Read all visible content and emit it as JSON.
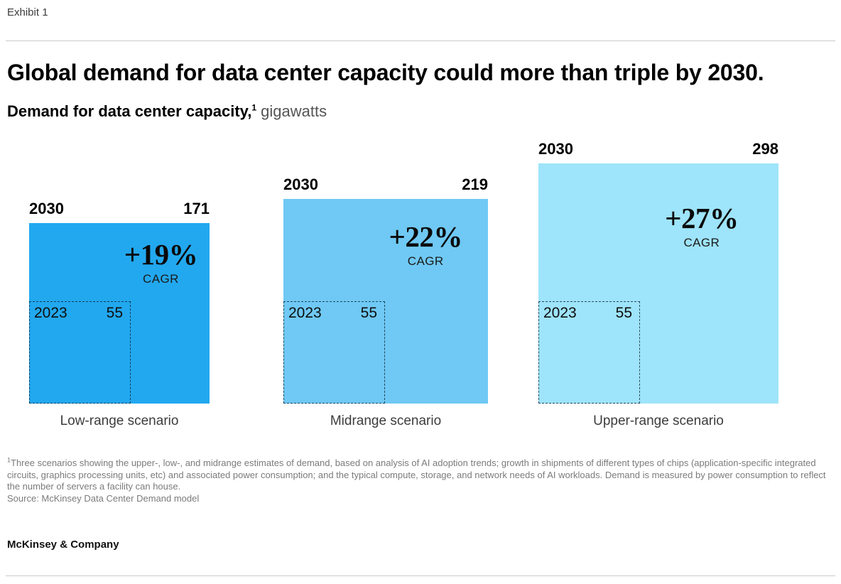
{
  "exhibit": "Exhibit 1",
  "title": "Global demand for data center capacity could more than triple by 2030.",
  "subtitle": {
    "bold": "Demand for data center capacity,",
    "superscript": "1",
    "unit": " gigawatts"
  },
  "chart_data": {
    "type": "area",
    "subtype": "nested-proportional-squares",
    "title": "Global demand for data center capacity could more than triple by 2030.",
    "measure_label": "Demand for data center capacity, gigawatts",
    "unit": "gigawatts",
    "categories": [
      "Low-range scenario",
      "Midrange scenario",
      "Upper-range scenario"
    ],
    "series": [
      {
        "name": "2023",
        "values": [
          55,
          55,
          55
        ]
      },
      {
        "name": "2030",
        "values": [
          171,
          219,
          298
        ]
      }
    ],
    "annotations": [
      "+19% CAGR",
      "+22% CAGR",
      "+27% CAGR"
    ],
    "legend": false,
    "grid": false,
    "colors": [
      "#22A8EF",
      "#6FC9F4",
      "#9EE4FA"
    ]
  },
  "scenarios": [
    {
      "end_year": "2030",
      "end_value": "171",
      "start_year": "2023",
      "start_value": "55",
      "cagr": "+19%",
      "cagr_label": "CAGR",
      "label": "Low-range scenario",
      "color": "#22A8EF"
    },
    {
      "end_year": "2030",
      "end_value": "219",
      "start_year": "2023",
      "start_value": "55",
      "cagr": "+22%",
      "cagr_label": "CAGR",
      "label": "Midrange scenario",
      "color": "#6FC9F4"
    },
    {
      "end_year": "2030",
      "end_value": "298",
      "start_year": "2023",
      "start_value": "55",
      "cagr": "+27%",
      "cagr_label": "CAGR",
      "label": "Upper-range scenario",
      "color": "#9EE4FA"
    }
  ],
  "footnote": {
    "superscript": "1",
    "text": "Three scenarios showing the upper-, low-, and midrange estimates of demand, based on analysis of AI adoption trends; growth in shipments of different types of chips (application-specific integrated circuits, graphics processing units, etc) and associated power consumption; and the typical compute, storage, and network needs of AI workloads. Demand is measured by power consumption to reflect the number of servers a facility can house.",
    "source": "Source: McKinsey Data Center Demand model"
  },
  "logo": "McKinsey & Company"
}
